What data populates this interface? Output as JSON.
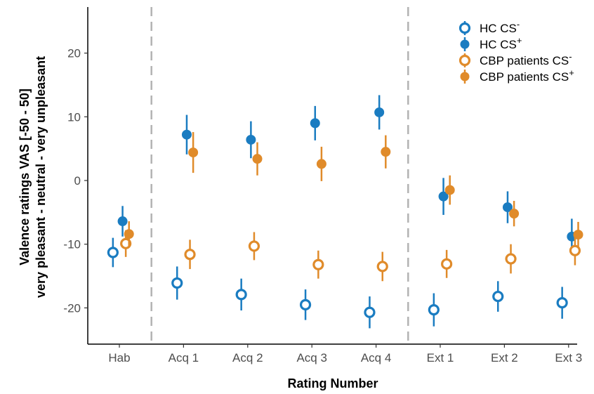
{
  "chart_data": {
    "type": "scatter",
    "xlabel": "Rating Number",
    "ylabel_line1": "Valence ratings VAS [-50 - 50]",
    "ylabel_line2": "very pleasant - neutral - very unpleasant",
    "categories": [
      "Hab",
      "Acq 1",
      "Acq 2",
      "Acq 3",
      "Acq 4",
      "Ext 1",
      "Ext 2",
      "Ext 3"
    ],
    "ylim": [
      -26,
      27
    ],
    "yticks": [
      -20,
      -10,
      0,
      10,
      20
    ],
    "phase_dividers_after": [
      "Hab",
      "Acq 4"
    ],
    "grid": false,
    "legend_position": "top-right",
    "series": [
      {
        "name": "HC CS",
        "sup": "-",
        "color": "#1a7cc1",
        "marker": "open-circle",
        "offset": -0.1,
        "values": [
          -11.3,
          -16.1,
          -17.9,
          -19.5,
          -20.7,
          -20.3,
          -18.2,
          -19.2
        ],
        "errors": [
          2.3,
          2.6,
          2.5,
          2.4,
          2.5,
          2.6,
          2.4,
          2.5
        ]
      },
      {
        "name": "HC CS",
        "sup": "+",
        "color": "#1a7cc1",
        "marker": "filled-circle",
        "offset": 0.05,
        "values": [
          -6.4,
          7.2,
          6.4,
          9.0,
          10.7,
          -2.5,
          -4.2,
          -8.8
        ],
        "errors": [
          2.4,
          3.1,
          2.9,
          2.7,
          2.7,
          2.9,
          2.5,
          2.8
        ]
      },
      {
        "name": "CBP patients CS",
        "sup": "-",
        "color": "#e08b2a",
        "marker": "open-circle",
        "offset": 0.1,
        "values": [
          -9.9,
          -11.6,
          -10.3,
          -13.2,
          -13.5,
          -13.1,
          -12.3,
          -11.0
        ],
        "errors": [
          2.1,
          2.3,
          2.2,
          2.2,
          2.3,
          2.2,
          2.3,
          2.3
        ]
      },
      {
        "name": "CBP patients CS",
        "sup": "+",
        "color": "#e08b2a",
        "marker": "filled-circle",
        "offset": 0.15,
        "values": [
          -8.4,
          4.4,
          3.4,
          2.6,
          4.5,
          -1.5,
          -5.2,
          -8.5
        ],
        "errors": [
          2.0,
          3.2,
          2.6,
          2.7,
          2.6,
          2.3,
          2.0,
          2.0
        ]
      }
    ]
  }
}
